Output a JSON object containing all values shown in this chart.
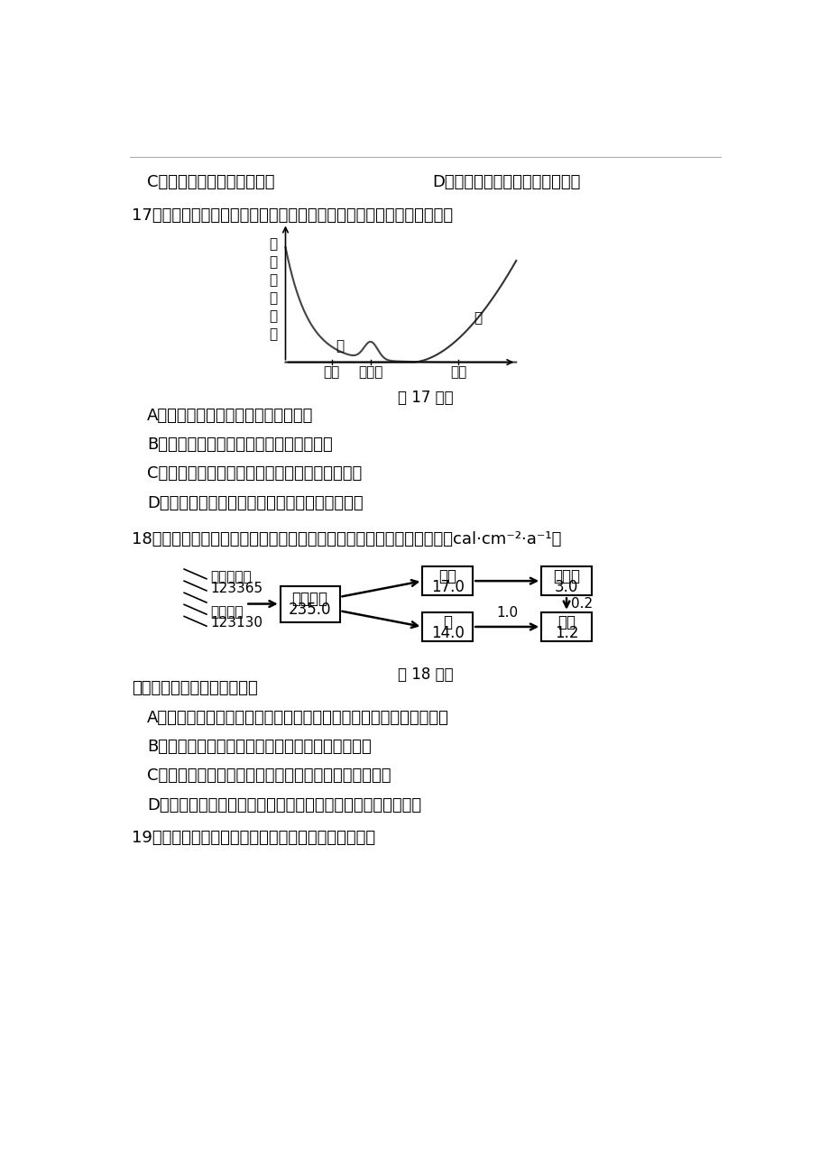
{
  "background_color": "#ffffff",
  "page_width": 9.2,
  "page_height": 12.74,
  "line1_left": "C．通常设置蒸馏水组为对照",
  "line1_right": "D．需要选用生长状况不同的枝条",
  "q17_text": "17．遗传病在人体不同发育阶段的发病风险如图所示，下列叙述正确的是",
  "fig17_caption": "第 17 题图",
  "q17_A": "A．甲乙两类遗传病均由致病基因引起",
  "q17_B": "B．遗传咋询可杜绝甲乙两类遗传病的发生",
  "q17_C": "C．高血压病属于甲类遗传病，其子女不一定患病",
  "q17_D": "D．健康的生活方式可降低乙类遗传病的发病风险",
  "q18_text": "18．某湿地生态系统能量流动的定量分析如图所示，其中数据为能量值（cal·cm⁻²·a⁻¹）",
  "fig18_caption": "第 18 题图",
  "q18_intro": "据图分析，下列叙述正确的是",
  "q18_A": "A．能量从昆虫向食虫鸟的传递效率明显高于食虫鸟向猛禽的传递效率",
  "q18_B": "B．能量的单向流动使得三级消费者同化的能量最少",
  "q18_C": "C．鼠同化的能量除流向猛禽外其余能量均用于自身呼吸",
  "q18_D": "D．生产者同化能量多的原因是将太阳能转化为化学能的效率高",
  "q19_text": "19．利用光学显微镜观察的活动中，下列叙述正确的是",
  "ylabel_chars": "受累个体数量",
  "xlabel_birth": "出生",
  "xlabel_puberty": "青春期",
  "xlabel_adult": "成年",
  "label_jia": "甲",
  "label_yi": "乙",
  "label_sun": "太阳辐射能",
  "label_sun_val": "123365",
  "label_unfixed": "未被固定",
  "label_unfixed_val": "123130",
  "label_plant": "草本植物",
  "label_plant_val": "235.0",
  "label_insect": "昆虫",
  "label_insect_val": "17.0",
  "label_bird": "食虫鸟",
  "label_bird_val": "3.0",
  "label_rat": "鼠",
  "label_rat_val": "14.0",
  "label_raptor": "猛禽",
  "label_raptor_val": "1.2",
  "label_arrow_rat_raptor": "1.0",
  "label_arrow_bird_raptor": "0.2"
}
